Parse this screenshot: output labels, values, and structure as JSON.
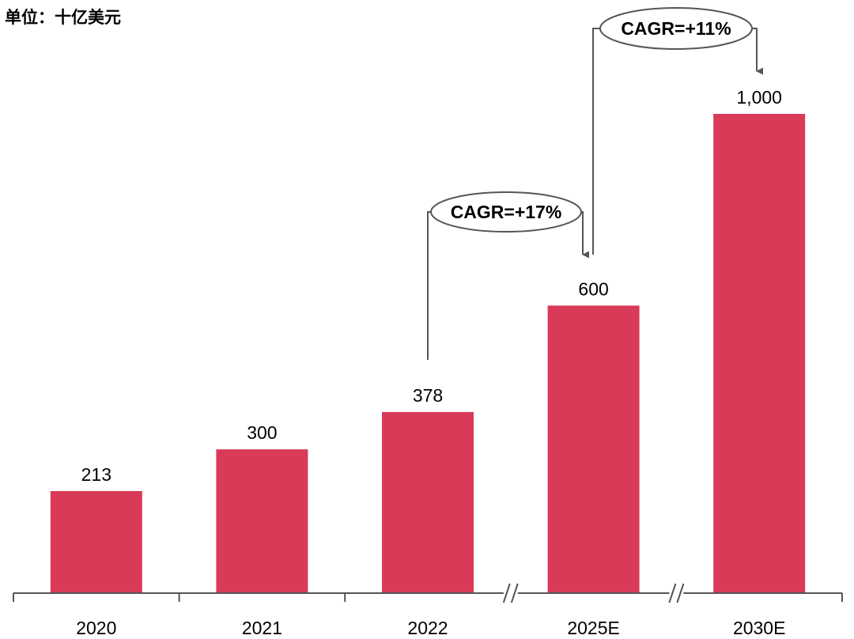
{
  "unit_label": "单位：十亿美元",
  "colors": {
    "bar": "#D93A57",
    "axis": "#555555",
    "bracket": "#555555",
    "text": "#000000"
  },
  "chart_data": {
    "type": "bar",
    "title": "",
    "xlabel": "",
    "ylabel": "",
    "categories": [
      "2020",
      "2021",
      "2022",
      "2025E",
      "2030E"
    ],
    "values": [
      213,
      300,
      378,
      600,
      1000
    ],
    "data_labels": [
      "213",
      "300",
      "378",
      "600",
      "1,000"
    ],
    "ylim": [
      0,
      1000
    ],
    "grid": false,
    "axis_breaks_before": [
      "2025E",
      "2030E"
    ],
    "annotations": [
      {
        "text": "CAGR=+17%",
        "from": "2022",
        "to": "2025E"
      },
      {
        "text": "CAGR=+11%",
        "from": "2025E",
        "to": "2030E"
      }
    ]
  }
}
